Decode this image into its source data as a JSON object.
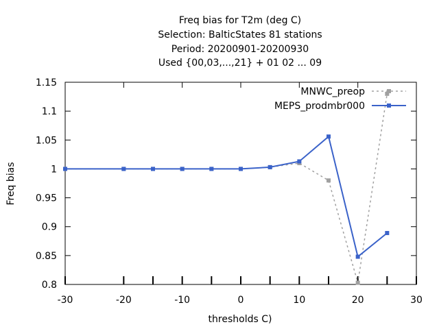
{
  "chart_data": {
    "type": "line",
    "title_lines": [
      "Freq bias  for T2m (deg C)",
      "Selection: BalticStates     81 stations",
      "Period: 20200901-20200930",
      "Used {00,03,...,21} + 01 02 ... 09"
    ],
    "xlabel": "thresholds C)",
    "ylabel": "Freq bias",
    "xlim": [
      -30,
      30
    ],
    "ylim": [
      0.8,
      1.15
    ],
    "xticks": [
      -30,
      -20,
      -10,
      0,
      10,
      20,
      30
    ],
    "xtick_labels": [
      "-30",
      "-20",
      "-10",
      "0",
      "10",
      "20",
      "30"
    ],
    "yticks": [
      0.8,
      0.85,
      0.9,
      0.95,
      1.0,
      1.05,
      1.1,
      1.15
    ],
    "ytick_labels": [
      "0.8",
      "0.85",
      "0.9",
      "0.95",
      "1",
      "1.05",
      "1.1",
      "1.15"
    ],
    "grid": false,
    "legend_position": "top-right",
    "series": [
      {
        "name": "MNWC_preop",
        "color": "#a0a0a0",
        "style": "dashed",
        "x": [
          -30,
          -20,
          -15,
          -10,
          -5,
          0,
          5,
          10,
          15,
          20,
          25
        ],
        "y": [
          1.0,
          1.0,
          1.0,
          1.0,
          1.0,
          1.0,
          1.003,
          1.01,
          0.98,
          0.803,
          1.13
        ]
      },
      {
        "name": "MEPS_prodmbr000",
        "color": "#3a62c9",
        "style": "solid",
        "x": [
          -30,
          -20,
          -15,
          -10,
          -5,
          0,
          5,
          10,
          15,
          20,
          25
        ],
        "y": [
          1.0,
          1.0,
          1.0,
          1.0,
          1.0,
          1.0,
          1.003,
          1.013,
          1.056,
          0.848,
          0.889
        ]
      }
    ]
  }
}
